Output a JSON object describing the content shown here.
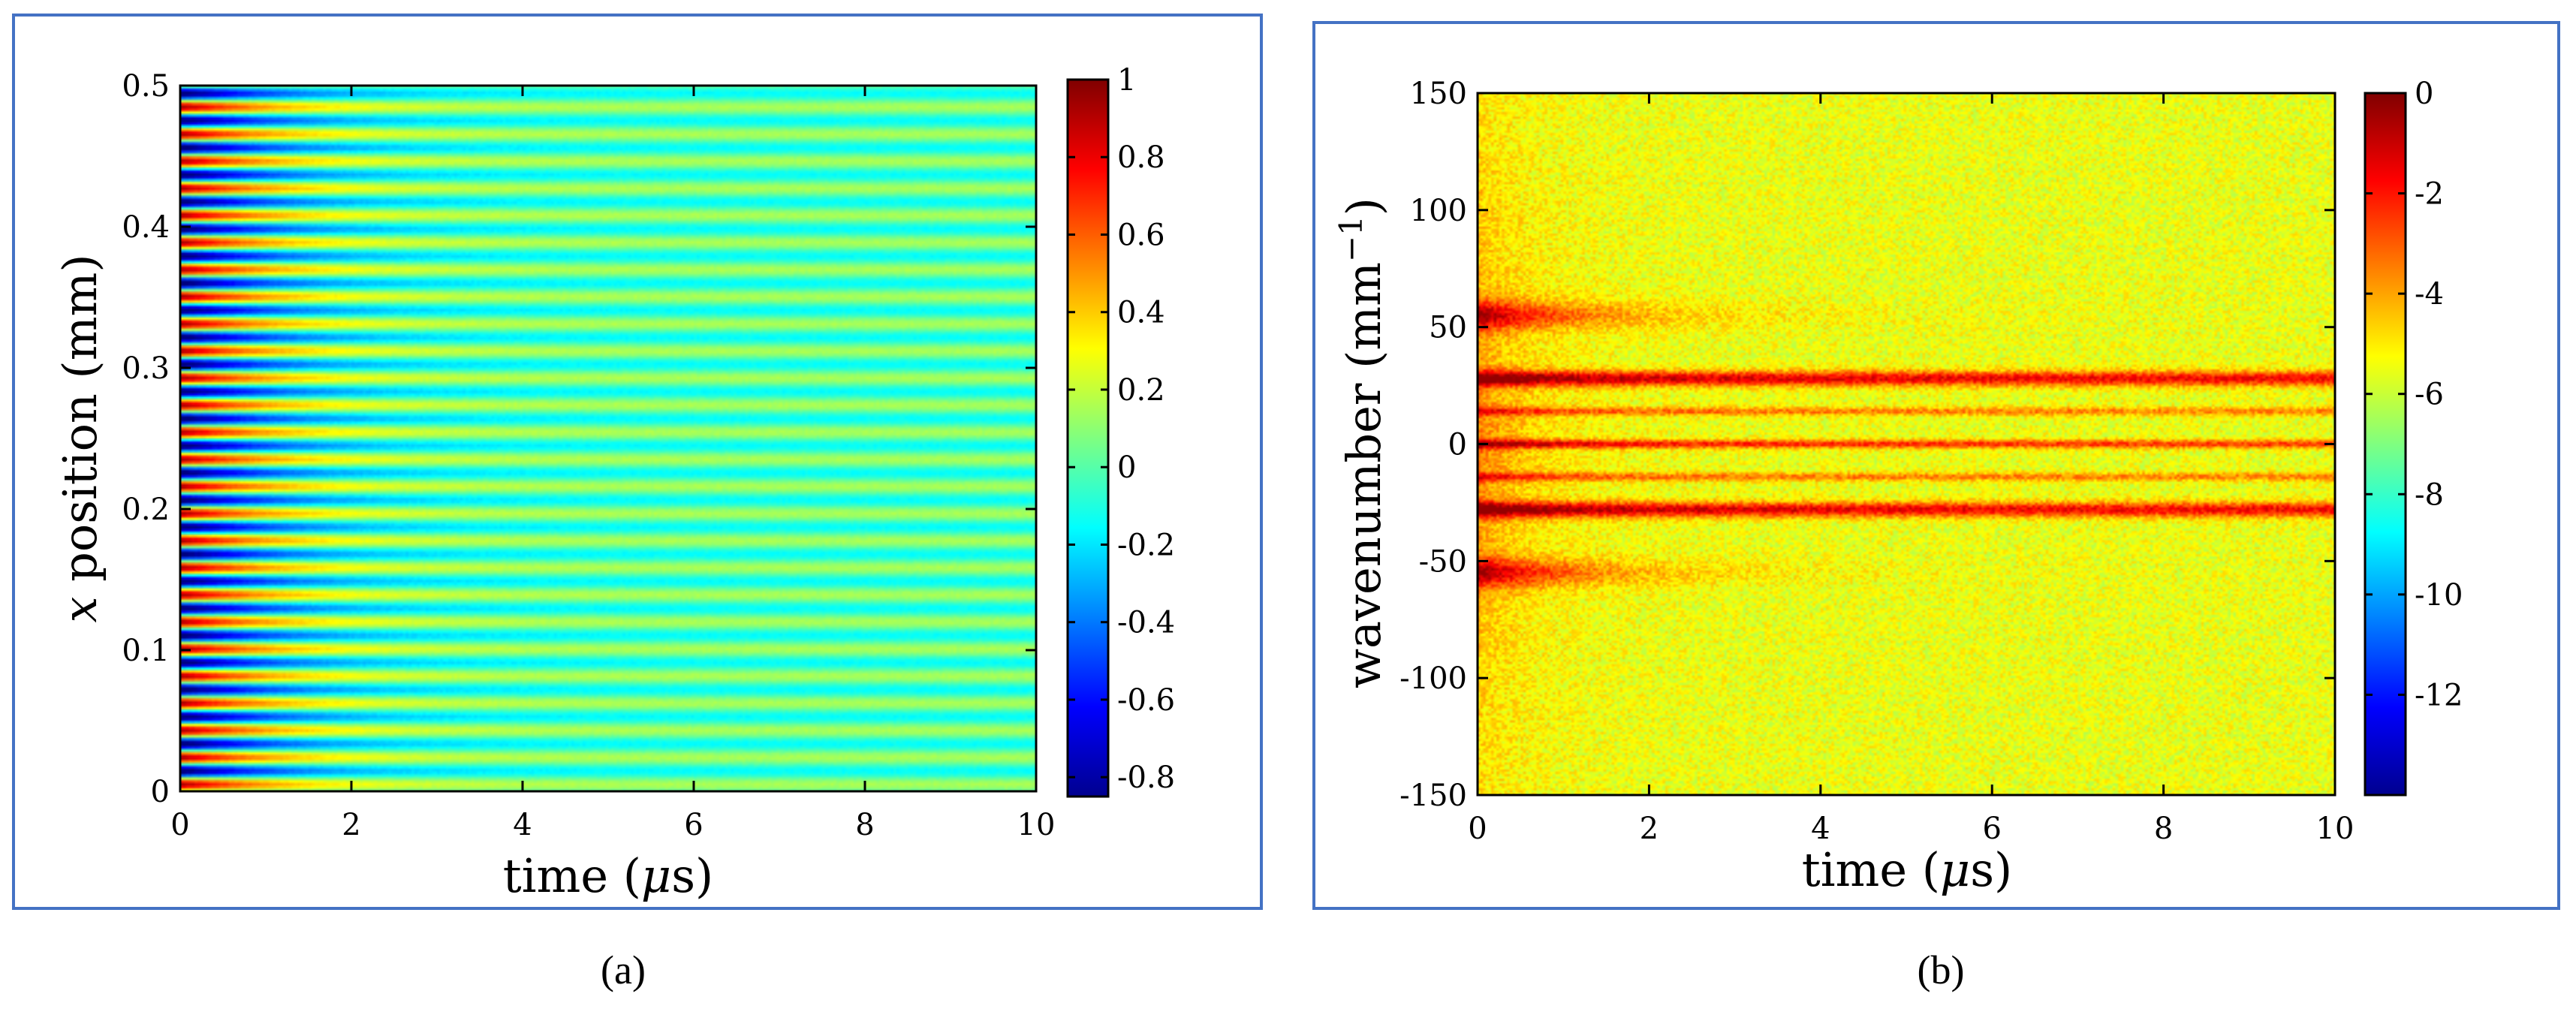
{
  "chart_data": [
    {
      "type": "heatmap",
      "panel_label": "(a)",
      "xlabel": "time (μs)",
      "ylabel": "x position (mm)",
      "ylabel_var": "x",
      "ylabel_rest": " position (mm)",
      "xlabel_pre": "time (",
      "xlabel_var": "μ",
      "xlabel_post": "s)",
      "xlim": [
        0,
        10
      ],
      "ylim": [
        0,
        0.5
      ],
      "x_ticks": [
        0,
        2,
        4,
        6,
        8,
        10
      ],
      "x_tick_labels": [
        "0",
        "2",
        "4",
        "6",
        "8",
        "10"
      ],
      "y_ticks": [
        0,
        0.1,
        0.2,
        0.3,
        0.4,
        0.5
      ],
      "y_tick_labels": [
        "0",
        "0.1",
        "0.2",
        "0.3",
        "0.4",
        "0.5"
      ],
      "colorbar": {
        "range": [
          -0.85,
          1.0
        ],
        "ticks": [
          1,
          0.8,
          0.6,
          0.4,
          0.2,
          0,
          -0.2,
          -0.4,
          -0.6,
          -0.8
        ],
        "tick_labels": [
          "1",
          "0.8",
          "0.6",
          "0.4",
          "0.2",
          "0",
          "-0.2",
          "-0.4",
          "-0.6",
          "-0.8"
        ]
      },
      "description_values": {
        "stripe_count": 26,
        "stripe_period_mm": 0.0192,
        "initial_amplitude": 0.95,
        "decay_time_us": 1.2,
        "late_time_amplitude": 0.15
      }
    },
    {
      "type": "heatmap",
      "panel_label": "(b)",
      "xlabel": "time (μs)",
      "ylabel": "wavenumber (mm⁻¹)",
      "ylabel_main": "wavenumber (mm",
      "ylabel_sup": "−1",
      "ylabel_close": ")",
      "xlabel_pre": "time (",
      "xlabel_var": "μ",
      "xlabel_post": "s)",
      "xlim": [
        0,
        10
      ],
      "ylim": [
        -150,
        150
      ],
      "x_ticks": [
        0,
        2,
        4,
        6,
        8,
        10
      ],
      "x_tick_labels": [
        "0",
        "2",
        "4",
        "6",
        "8",
        "10"
      ],
      "y_ticks": [
        150,
        100,
        50,
        0,
        -50,
        -100,
        -150
      ],
      "y_tick_labels": [
        "150",
        "100",
        "50",
        "0",
        "-50",
        "-100",
        "-150"
      ],
      "colorbar": {
        "range": [
          -14,
          0
        ],
        "ticks": [
          0,
          -2,
          -4,
          -6,
          -8,
          -10,
          -12
        ],
        "tick_labels": [
          "0",
          "-2",
          "-4",
          "-6",
          "-8",
          "-10",
          "-12"
        ]
      },
      "persistent_bands_mm_inv": [
        28,
        14,
        0,
        -14,
        -28
      ],
      "transient_bands_mm_inv": [
        55,
        -55
      ],
      "background_level": -5.5
    }
  ],
  "captions": {
    "a": "(a)",
    "b": "(b)"
  },
  "colors": {
    "frame": "#4472c4"
  }
}
